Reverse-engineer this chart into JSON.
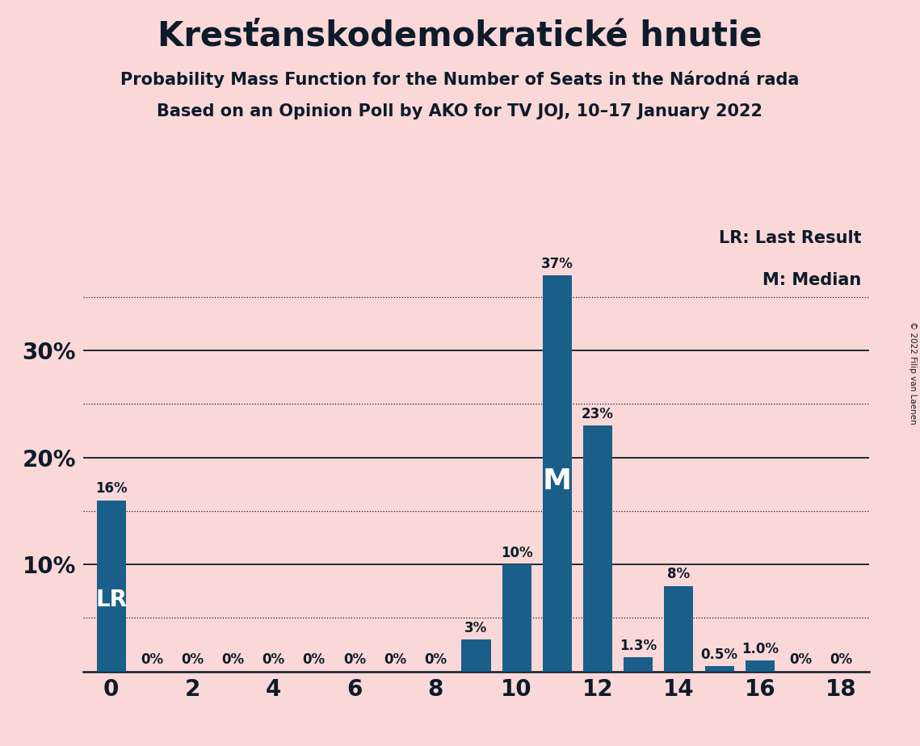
{
  "title": "Kresťanskodemokratické hnutie",
  "subtitle1": "Probability Mass Function for the Number of Seats in the Národná rada",
  "subtitle2": "Based on an Opinion Poll by AKO for TV JOJ, 10–17 January 2022",
  "copyright": "© 2022 Filip van Laenen",
  "background_color": "#fbd8d8",
  "bar_color": "#1a5f8a",
  "seats": [
    0,
    1,
    2,
    3,
    4,
    5,
    6,
    7,
    8,
    9,
    10,
    11,
    12,
    13,
    14,
    15,
    16,
    17,
    18
  ],
  "probabilities": [
    0.16,
    0.0,
    0.0,
    0.0,
    0.0,
    0.0,
    0.0,
    0.0,
    0.0,
    0.03,
    0.1,
    0.37,
    0.23,
    0.013,
    0.08,
    0.005,
    0.01,
    0.0,
    0.0
  ],
  "labels": [
    "16%",
    "0%",
    "0%",
    "0%",
    "0%",
    "0%",
    "0%",
    "0%",
    "0%",
    "3%",
    "10%",
    "37%",
    "23%",
    "1.3%",
    "8%",
    "0.5%",
    "1.0%",
    "0%",
    "0%"
  ],
  "lr_seat": 0,
  "median_seat": 11,
  "yticks": [
    0.1,
    0.2,
    0.3
  ],
  "ytick_labels": [
    "10%",
    "20%",
    "30%"
  ],
  "ylim": [
    0,
    0.415
  ],
  "xlim": [
    -0.7,
    18.7
  ],
  "legend_lr": "LR: Last Result",
  "legend_m": "M: Median",
  "solid_lines": [
    0.1,
    0.2,
    0.3
  ],
  "dotted_lines": [
    0.05,
    0.15,
    0.25,
    0.35
  ],
  "xticks": [
    0,
    2,
    4,
    6,
    8,
    10,
    12,
    14,
    16,
    18
  ],
  "text_color": "#0d1b2a",
  "title_fontsize": 30,
  "subtitle_fontsize": 15,
  "bar_label_fontsize": 12,
  "axis_label_fontsize": 20,
  "legend_fontsize": 15,
  "lr_label": "LR",
  "m_label": "M",
  "lr_fontsize": 20,
  "m_fontsize": 26
}
